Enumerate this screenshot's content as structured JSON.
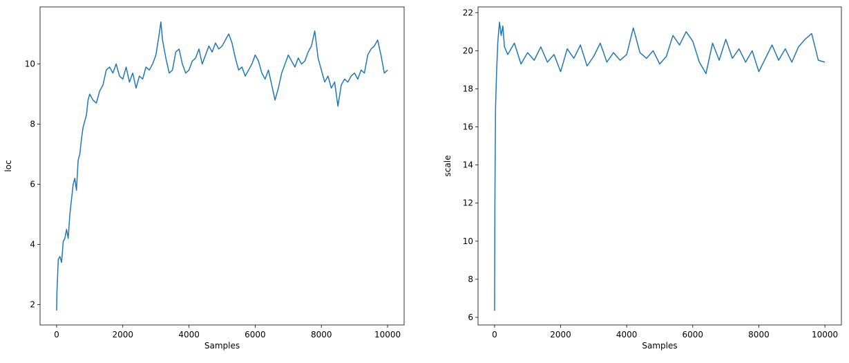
{
  "chart_data": [
    {
      "type": "line",
      "xlabel": "Samples",
      "ylabel": "loc",
      "color": "#1f77b4",
      "xlim": [
        -500,
        10500
      ],
      "ylim": [
        1.32,
        11.9
      ],
      "xticks": [
        0,
        2000,
        4000,
        6000,
        8000,
        10000
      ],
      "yticks": [
        2,
        4,
        6,
        8,
        10
      ],
      "x": [
        0,
        10,
        50,
        100,
        150,
        200,
        250,
        300,
        350,
        400,
        450,
        500,
        550,
        600,
        650,
        700,
        750,
        800,
        850,
        900,
        950,
        1000,
        1100,
        1200,
        1300,
        1400,
        1500,
        1600,
        1700,
        1800,
        1900,
        2000,
        2100,
        2200,
        2300,
        2400,
        2500,
        2600,
        2700,
        2800,
        2900,
        3000,
        3100,
        3150,
        3200,
        3300,
        3400,
        3500,
        3600,
        3700,
        3800,
        3900,
        4000,
        4100,
        4200,
        4300,
        4400,
        4500,
        4600,
        4700,
        4800,
        4900,
        5000,
        5100,
        5200,
        5300,
        5400,
        5500,
        5600,
        5700,
        5800,
        5900,
        6000,
        6100,
        6200,
        6300,
        6400,
        6500,
        6600,
        6700,
        6800,
        6900,
        7000,
        7100,
        7200,
        7300,
        7400,
        7500,
        7600,
        7700,
        7800,
        7900,
        8000,
        8100,
        8200,
        8300,
        8400,
        8500,
        8600,
        8700,
        8800,
        8900,
        9000,
        9100,
        9200,
        9300,
        9400,
        9500,
        9600,
        9700,
        9800,
        9900,
        10000
      ],
      "values": [
        1.8,
        2.4,
        3.5,
        3.6,
        3.4,
        4.1,
        4.2,
        4.5,
        4.2,
        5.0,
        5.5,
        6.0,
        6.2,
        5.8,
        6.8,
        7.0,
        7.5,
        7.9,
        8.1,
        8.3,
        8.8,
        9.0,
        8.8,
        8.7,
        9.1,
        9.3,
        9.8,
        9.9,
        9.7,
        10.0,
        9.6,
        9.5,
        9.9,
        9.4,
        9.7,
        9.2,
        9.6,
        9.5,
        9.9,
        9.8,
        10.0,
        10.3,
        11.0,
        11.4,
        10.8,
        10.2,
        9.7,
        9.8,
        10.4,
        10.5,
        10.0,
        9.7,
        9.8,
        10.1,
        10.2,
        10.5,
        10.0,
        10.3,
        10.6,
        10.4,
        10.7,
        10.5,
        10.6,
        10.8,
        11.0,
        10.7,
        10.2,
        9.8,
        9.9,
        9.6,
        9.8,
        10.0,
        10.3,
        10.1,
        9.7,
        9.5,
        9.8,
        9.3,
        8.8,
        9.2,
        9.7,
        10.0,
        10.3,
        10.1,
        9.9,
        10.2,
        10.0,
        10.1,
        10.4,
        10.6,
        11.1,
        10.2,
        9.8,
        9.4,
        9.6,
        9.2,
        9.4,
        8.6,
        9.3,
        9.5,
        9.4,
        9.6,
        9.7,
        9.5,
        9.8,
        9.7,
        10.3,
        10.5,
        10.6,
        10.8,
        10.3,
        9.7,
        9.8
      ]
    },
    {
      "type": "line",
      "xlabel": "Samples",
      "ylabel": "scale",
      "color": "#1f77b4",
      "xlim": [
        -500,
        10500
      ],
      "ylim": [
        5.6,
        22.3
      ],
      "xticks": [
        0,
        2000,
        4000,
        6000,
        8000,
        10000
      ],
      "yticks": [
        6,
        8,
        10,
        12,
        14,
        16,
        18,
        20,
        22
      ],
      "x": [
        0,
        10,
        30,
        60,
        100,
        150,
        200,
        250,
        300,
        400,
        600,
        800,
        1000,
        1200,
        1400,
        1600,
        1800,
        2000,
        2200,
        2400,
        2600,
        2800,
        3000,
        3200,
        3400,
        3600,
        3800,
        4000,
        4200,
        4400,
        4600,
        4800,
        5000,
        5200,
        5400,
        5600,
        5800,
        6000,
        6200,
        6400,
        6600,
        6800,
        7000,
        7200,
        7400,
        7600,
        7800,
        8000,
        8200,
        8400,
        8600,
        8800,
        9000,
        9200,
        9400,
        9600,
        9800,
        10000
      ],
      "values": [
        6.35,
        12,
        17,
        18.8,
        20.5,
        21.5,
        20.8,
        21.3,
        20.2,
        19.8,
        20.4,
        19.3,
        19.9,
        19.5,
        20.2,
        19.4,
        19.8,
        18.9,
        20.1,
        19.6,
        20.3,
        19.2,
        19.7,
        20.4,
        19.4,
        19.9,
        19.5,
        19.8,
        21.2,
        19.9,
        19.6,
        20.0,
        19.3,
        19.7,
        20.8,
        20.3,
        21.0,
        20.5,
        19.4,
        18.8,
        20.4,
        19.5,
        20.6,
        19.6,
        20.1,
        19.4,
        20.0,
        18.9,
        19.6,
        20.3,
        19.5,
        20.1,
        19.4,
        20.2,
        20.6,
        20.9,
        19.5,
        19.4
      ]
    }
  ]
}
